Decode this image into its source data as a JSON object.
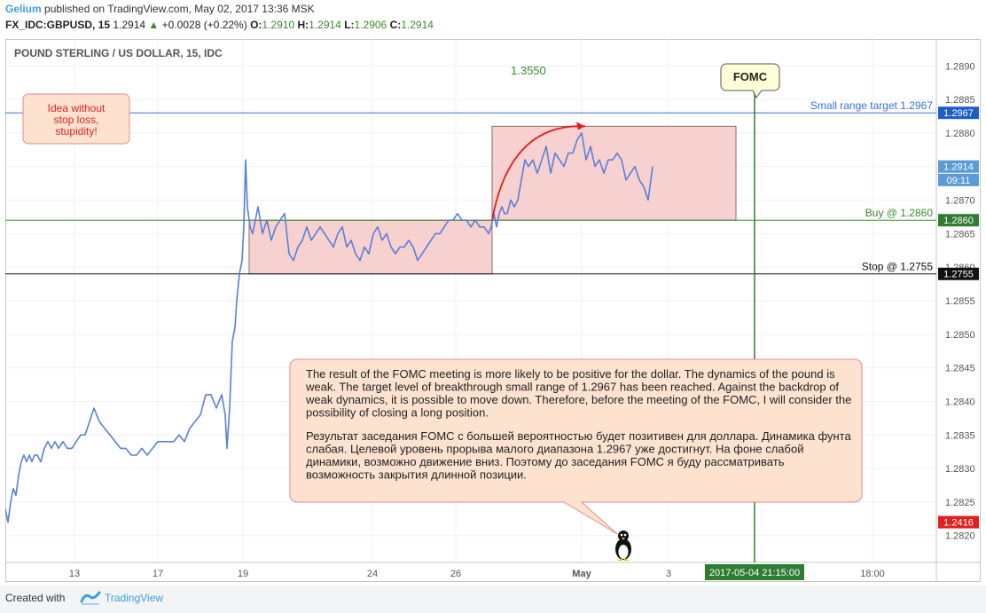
{
  "header": {
    "author": "Gelium",
    "published_text": "published on TradingView.com, May 02, 2017 13:36 MSK",
    "symbol": "FX_IDC:GBPUSD, 15",
    "last": "1.2914",
    "change": "+0.0028 (+0.22%)",
    "o_label": "O:",
    "o_value": "1.2910",
    "h_label": "H:",
    "h_value": "1.2914",
    "l_label": "L:",
    "l_value": "1.2906",
    "c_label": "C:",
    "c_value": "1.2914"
  },
  "footer": {
    "created_with": "Created with",
    "brand": "TradingView"
  },
  "chart_data": {
    "type": "line",
    "title": "POUND STERLING / US DOLLAR, 15, IDC",
    "series": [
      {
        "x": [
          0,
          3,
          6,
          9,
          12,
          15,
          18,
          21,
          24,
          27,
          30,
          33,
          36,
          40,
          44,
          48,
          52,
          56,
          60,
          65,
          70,
          75,
          80,
          85,
          90,
          95,
          100,
          106,
          112,
          118,
          124,
          130,
          136,
          142,
          148,
          154,
          160,
          166,
          172,
          178,
          184,
          190,
          196,
          202,
          208,
          214,
          220,
          226,
          232,
          238,
          244,
          248,
          250,
          253,
          256,
          259,
          261,
          264,
          267,
          269,
          271,
          273,
          276,
          279,
          282,
          285,
          290,
          295,
          300,
          305,
          310,
          315,
          320,
          325,
          330,
          335,
          340,
          345,
          350,
          355,
          360,
          365,
          370,
          375,
          380,
          385,
          390,
          395,
          400,
          405,
          410,
          415,
          420,
          425,
          430,
          435,
          440,
          445,
          450,
          455,
          460,
          465,
          470,
          475,
          480,
          485,
          490,
          495,
          500,
          505,
          510,
          515,
          520,
          525,
          530,
          535,
          540,
          545,
          548,
          551,
          554,
          557,
          560,
          563,
          566,
          570,
          574,
          578,
          582,
          586,
          590,
          595,
          600,
          605,
          610,
          615,
          620,
          625,
          630,
          635,
          640,
          645,
          650,
          655,
          660,
          665,
          670,
          675,
          680,
          685,
          690,
          695,
          700,
          705,
          710,
          715,
          720,
          725,
          730
        ],
        "y": [
          1.2824,
          1.2822,
          1.2825,
          1.2827,
          1.2826,
          1.2829,
          1.2831,
          1.2832,
          1.2831,
          1.2832,
          1.2831,
          1.2832,
          1.2832,
          1.2831,
          1.2833,
          1.2834,
          1.2833,
          1.2834,
          1.2833,
          1.2834,
          1.2833,
          1.2833,
          1.2834,
          1.2835,
          1.2835,
          1.2837,
          1.2839,
          1.2837,
          1.2836,
          1.2835,
          1.2834,
          1.2833,
          1.2833,
          1.2832,
          1.2832,
          1.2833,
          1.2832,
          1.2833,
          1.2834,
          1.2834,
          1.2834,
          1.2834,
          1.2835,
          1.2834,
          1.2836,
          1.2837,
          1.2838,
          1.2841,
          1.2841,
          1.2839,
          1.2841,
          1.2838,
          1.2833,
          1.2839,
          1.2849,
          1.2851,
          1.2855,
          1.2859,
          1.2861,
          1.2866,
          1.2876,
          1.2869,
          1.2866,
          1.2865,
          1.2867,
          1.2869,
          1.2865,
          1.2867,
          1.2864,
          1.2866,
          1.2867,
          1.2868,
          1.2862,
          1.2861,
          1.2863,
          1.2864,
          1.2866,
          1.2864,
          1.2865,
          1.2866,
          1.2865,
          1.2864,
          1.2863,
          1.2865,
          1.2866,
          1.2863,
          1.2864,
          1.2862,
          1.2861,
          1.2863,
          1.2862,
          1.2865,
          1.2866,
          1.2864,
          1.2865,
          1.2863,
          1.2862,
          1.2863,
          1.2863,
          1.2864,
          1.2863,
          1.2861,
          1.2862,
          1.2863,
          1.2864,
          1.2865,
          1.2865,
          1.2866,
          1.2867,
          1.2867,
          1.2868,
          1.2867,
          1.2867,
          1.2866,
          1.2867,
          1.2866,
          1.2866,
          1.2865,
          1.2866,
          1.2868,
          1.2866,
          1.2868,
          1.2869,
          1.2868,
          1.2868,
          1.287,
          1.2869,
          1.287,
          1.2873,
          1.2876,
          1.2875,
          1.2876,
          1.2874,
          1.2876,
          1.2878,
          1.2874,
          1.2877,
          1.2876,
          1.2875,
          1.2877,
          1.2877,
          1.2879,
          1.288,
          1.2876,
          1.2878,
          1.2875,
          1.2876,
          1.2874,
          1.2876,
          1.2876,
          1.2877,
          1.2876,
          1.2873,
          1.2874,
          1.2875,
          1.2873,
          1.2872,
          1.287,
          1.2875
        ]
      }
    ],
    "ylim": [
      1.2816,
      1.2894
    ],
    "xticks": [
      {
        "label": "13",
        "x": 78
      },
      {
        "label": "17",
        "x": 172
      },
      {
        "label": "19",
        "x": 268
      },
      {
        "label": "24",
        "x": 414
      },
      {
        "label": "26",
        "x": 508
      },
      {
        "label": "May",
        "x": 650
      },
      {
        "label": "3",
        "x": 748
      },
      {
        "label": "18:00",
        "x": 978
      }
    ],
    "xlim": [
      0,
      1050
    ],
    "x_current_label": "2017-05-04 21:15:00",
    "x_current": 845,
    "yticks": [
      "1.2890",
      "1.2885",
      "1.2880",
      "1.2875",
      "1.2870",
      "1.2865",
      "1.2860",
      "1.2855",
      "1.2850",
      "1.2845",
      "1.2840",
      "1.2835",
      "1.2830",
      "1.2825",
      "1.2820"
    ],
    "ytick_values": [
      1.289,
      1.2885,
      1.288,
      1.2875,
      1.287,
      1.2865,
      1.286,
      1.2855,
      1.285,
      1.2845,
      1.284,
      1.2835,
      1.283,
      1.2825,
      1.282
    ],
    "price_badges": [
      {
        "label": "1.2967",
        "value": 1.2883,
        "color": "#1e5dc8"
      },
      {
        "label": "1.2914",
        "value": 1.2875,
        "color": "#5b9bd5"
      },
      {
        "label": "09:11",
        "value": 1.2873,
        "color": "#5b9bd5"
      },
      {
        "label": "1.2860",
        "value": 1.2867,
        "color": "#2e7d32"
      },
      {
        "label": "1.2755",
        "value": 1.2859,
        "color": "#111111"
      },
      {
        "label": "1.2416",
        "value": 1.2822,
        "color": "#e02020"
      }
    ],
    "hlines": [
      {
        "label": "Small range target 1.2967",
        "value": 1.2883,
        "color": "#3a6fd8"
      },
      {
        "label": "Buy @ 1.2860",
        "value": 1.2867,
        "color": "#3b8b2a"
      },
      {
        "label": "Stop @ 1.2755",
        "value": 1.2859,
        "color": "#111111"
      }
    ],
    "rectangles": [
      {
        "x0": 275,
        "x1": 549,
        "y0": 1.2859,
        "y1": 1.2867
      },
      {
        "x0": 549,
        "x1": 824,
        "y0": 1.2867,
        "y1": 1.2881
      }
    ],
    "vline_x": 845,
    "annotations": {
      "level_text": "1.3550",
      "idea_note": [
        "Idea without",
        "stop loss,",
        "stupidity!"
      ],
      "fomc_label": "FOMC",
      "main_note_en": "The result of the FOMC meeting is more likely to be positive for the dollar. The dynamics of the pound is weak. The target level of breakthrough small range of 1.2967 has been reached. Against the backdrop of weak dynamics, it is possible to move down. Therefore, before the meeting of the FOMC, I will consider the possibility of closing a long position.",
      "main_note_ru": "Результат заседания FOMC с большей вероятностью будет позитивен для доллара. Динамика фунта слабая. Целевой уровень прорыва малого диапазона 1.2967 уже достигнут. На фоне слабой динамики, возможно движение вниз. Поэтому до заседания FOMC я буду рассматривать возможность закрытия длинной позиции.",
      "penguin": "penguin-icon"
    },
    "colors": {
      "line": "#5b7fd6",
      "rect_fill": "#f6c8c8",
      "note_fill": "#fde3cf",
      "note_border": "#e58a8a",
      "idea_text": "#e02020",
      "fomc_fill": "#ffffd8",
      "vline": "#2e7d32",
      "level_text": "#3b8b2a"
    }
  }
}
